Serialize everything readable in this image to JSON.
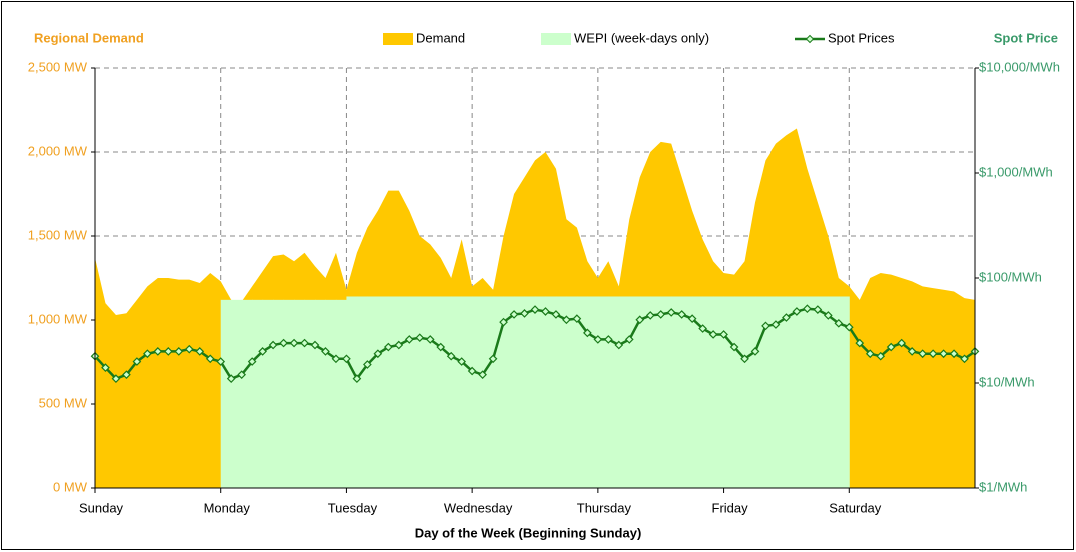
{
  "chart_data": {
    "type": "combo",
    "ylabel": "Regional Demand",
    "y2label": "Spot Price",
    "xlabel": "Day of the Week (Beginning Sunday)",
    "xlim": [
      0,
      168
    ],
    "xticks": [
      {
        "value": 0,
        "label": "Sunday"
      },
      {
        "value": 24,
        "label": "Monday"
      },
      {
        "value": 48,
        "label": "Tuesday"
      },
      {
        "value": 72,
        "label": "Wednesday"
      },
      {
        "value": 96,
        "label": "Thursday"
      },
      {
        "value": 120,
        "label": "Friday"
      },
      {
        "value": 144,
        "label": "Saturday"
      }
    ],
    "ylim": [
      0,
      2500
    ],
    "yticks": [
      {
        "value": 0,
        "label": "0 MW"
      },
      {
        "value": 500,
        "label": "500 MW"
      },
      {
        "value": 1000,
        "label": "1,000 MW"
      },
      {
        "value": 1500,
        "label": "1,500 MW"
      },
      {
        "value": 2000,
        "label": "2,000 MW"
      },
      {
        "value": 2500,
        "label": "2,500 MW"
      }
    ],
    "y2lim": [
      1,
      10000
    ],
    "y2scale": "log",
    "y2ticks": [
      {
        "value": 1,
        "label": "$1/MWh"
      },
      {
        "value": 10,
        "label": "$10/MWh"
      },
      {
        "value": 100,
        "label": "$100/MWh"
      },
      {
        "value": 1000,
        "label": "$1,000/MWh"
      },
      {
        "value": 10000,
        "label": "$10,000/MWh"
      }
    ],
    "grid": true,
    "x": [
      0,
      2,
      4,
      6,
      8,
      10,
      12,
      14,
      16,
      18,
      20,
      22,
      24,
      26,
      28,
      30,
      32,
      34,
      36,
      38,
      40,
      42,
      44,
      46,
      48,
      50,
      52,
      54,
      56,
      58,
      60,
      62,
      64,
      66,
      68,
      70,
      72,
      74,
      76,
      78,
      80,
      82,
      84,
      86,
      88,
      90,
      92,
      94,
      96,
      98,
      100,
      102,
      104,
      106,
      108,
      110,
      112,
      114,
      116,
      118,
      120,
      122,
      124,
      126,
      128,
      130,
      132,
      134,
      136,
      138,
      140,
      142,
      144,
      146,
      148,
      150,
      152,
      154,
      156,
      158,
      160,
      162,
      164,
      166,
      168
    ],
    "series": [
      {
        "name": "Demand",
        "type": "area",
        "color": "#ffc800",
        "values": [
          1370,
          1100,
          1030,
          1040,
          1120,
          1200,
          1250,
          1250,
          1240,
          1240,
          1220,
          1280,
          1230,
          1120,
          1110,
          1200,
          1290,
          1380,
          1390,
          1350,
          1400,
          1320,
          1250,
          1400,
          1180,
          1400,
          1550,
          1650,
          1770,
          1770,
          1650,
          1500,
          1450,
          1370,
          1250,
          1480,
          1200,
          1250,
          1180,
          1500,
          1750,
          1850,
          1950,
          2000,
          1900,
          1600,
          1550,
          1350,
          1250,
          1350,
          1200,
          1600,
          1850,
          2000,
          2060,
          2050,
          1850,
          1650,
          1480,
          1350,
          1280,
          1270,
          1350,
          1700,
          1950,
          2050,
          2100,
          2140,
          1900,
          1700,
          1500,
          1250,
          1200,
          1120,
          1250,
          1280,
          1270,
          1250,
          1230,
          1200,
          1190,
          1180,
          1170,
          1130,
          1120
        ]
      },
      {
        "name": "WEPI (week-days only)",
        "type": "step",
        "color": "#ccffcc",
        "values": [
          null,
          null,
          null,
          null,
          null,
          null,
          null,
          null,
          null,
          null,
          null,
          null,
          1120,
          1120,
          1120,
          1120,
          1120,
          1120,
          1120,
          1120,
          1120,
          1120,
          1120,
          1120,
          1140,
          1140,
          1140,
          1140,
          1140,
          1140,
          1140,
          1140,
          1140,
          1140,
          1140,
          1140,
          1140,
          1140,
          1140,
          1140,
          1140,
          1140,
          1140,
          1140,
          1140,
          1140,
          1140,
          1140,
          1140,
          1140,
          1140,
          1140,
          1140,
          1140,
          1140,
          1140,
          1140,
          1140,
          1140,
          1140,
          1140,
          1140,
          1140,
          1140,
          1140,
          1140,
          1140,
          1140,
          1140,
          1140,
          1140,
          1140,
          null,
          null,
          null,
          null,
          null,
          null,
          null,
          null,
          null,
          null,
          null,
          null,
          null
        ]
      },
      {
        "name": "Spot Prices",
        "type": "line",
        "axis": "y2",
        "color": "#1a7a1a",
        "values": [
          18,
          14,
          11,
          12,
          16,
          19,
          20,
          20,
          20,
          21,
          20,
          17,
          16,
          11,
          12,
          16,
          20,
          23,
          24,
          24,
          24,
          23,
          20,
          17,
          17,
          11,
          15,
          19,
          22,
          23,
          26,
          27,
          26,
          22,
          18,
          16,
          13,
          12,
          17,
          38,
          45,
          46,
          50,
          48,
          45,
          40,
          41,
          30,
          26,
          26,
          23,
          26,
          40,
          44,
          45,
          47,
          45,
          41,
          33,
          29,
          29,
          22,
          17,
          20,
          35,
          36,
          42,
          48,
          51,
          50,
          44,
          37,
          34,
          24,
          19,
          18,
          22,
          24,
          20,
          19,
          19,
          19,
          19,
          17,
          20
        ]
      }
    ]
  }
}
